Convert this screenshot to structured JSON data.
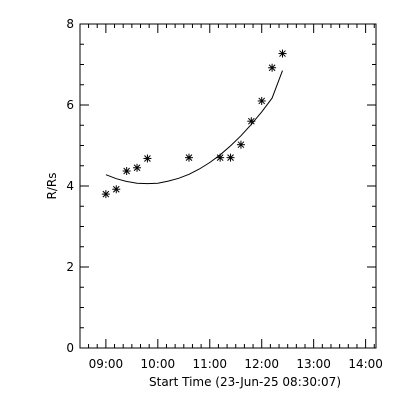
{
  "chart_data": {
    "type": "scatter",
    "title": "",
    "xlabel": "Start Time (23-Jun-25 08:30:07)",
    "ylabel": "R/Rs",
    "x_ticks": [
      "09:00",
      "10:00",
      "11:00",
      "12:00",
      "13:00",
      "14:00"
    ],
    "y_ticks": [
      "0",
      "2",
      "4",
      "6",
      "8"
    ],
    "xlim": [
      "08:30:07",
      "14:12"
    ],
    "ylim": [
      0,
      8
    ],
    "grid": false,
    "legend": "none",
    "series": [
      {
        "marker": "asterisk",
        "x": [
          "09:00",
          "09:12",
          "09:24",
          "09:36",
          "09:48",
          "10:36",
          "11:12",
          "11:24",
          "11:36",
          "11:48",
          "12:00",
          "12:12",
          "12:24"
        ],
        "y": [
          3.8,
          3.92,
          4.37,
          4.45,
          4.68,
          4.7,
          4.7,
          4.7,
          5.02,
          5.6,
          6.1,
          6.92,
          7.27
        ]
      },
      {
        "style": "line",
        "x": [
          "09:00",
          "09:12",
          "09:24",
          "09:36",
          "09:48",
          "10:00",
          "10:12",
          "10:24",
          "10:36",
          "10:48",
          "11:00",
          "11:12",
          "11:24",
          "11:36",
          "11:48",
          "12:00",
          "12:12",
          "12:24"
        ],
        "y": [
          4.28,
          4.18,
          4.11,
          4.07,
          4.06,
          4.07,
          4.12,
          4.19,
          4.29,
          4.42,
          4.58,
          4.77,
          4.99,
          5.24,
          5.52,
          5.83,
          6.17,
          6.85
        ]
      }
    ]
  }
}
